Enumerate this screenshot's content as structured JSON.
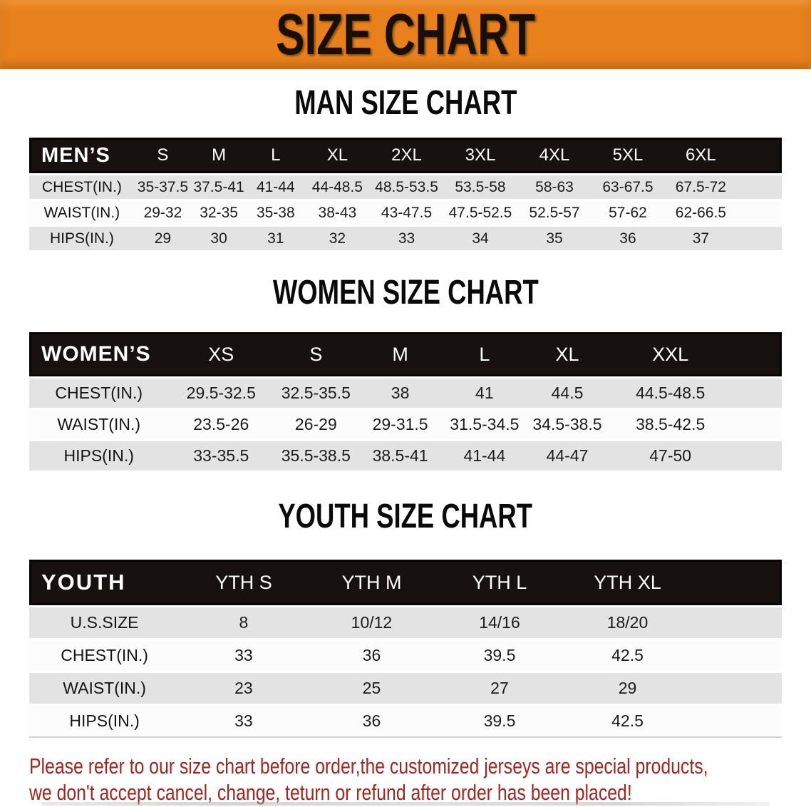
{
  "banner": {
    "title": "SIZE CHART"
  },
  "colors": {
    "banner_bg": "#E8811C",
    "banner_text": "#181006",
    "bar_bg": "#17120F",
    "bar_text": "#FFFFFF",
    "row_gray": "#E3E3E3",
    "row_white": "#FCFCFC",
    "disclaimer_text": "#A5241E"
  },
  "sections": [
    {
      "id": "men",
      "heading": "MAN SIZE CHART",
      "corner_label": "MEN’S",
      "columns": [
        "S",
        "M",
        "L",
        "XL",
        "2XL",
        "3XL",
        "4XL",
        "5XL",
        "6XL"
      ],
      "rows": [
        {
          "label": "CHEST(IN.)",
          "values": [
            "35-37.5",
            "37.5-41",
            "41-44",
            "44-48.5",
            "48.5-53.5",
            "53.5-58",
            "58-63",
            "63-67.5",
            "67.5-72"
          ]
        },
        {
          "label": "WAIST(IN.)",
          "values": [
            "29-32",
            "32-35",
            "35-38",
            "38-43",
            "43-47.5",
            "47.5-52.5",
            "52.5-57",
            "57-62",
            "62-66.5"
          ]
        },
        {
          "label": "HIPS(IN.)",
          "values": [
            "29",
            "30",
            "31",
            "32",
            "33",
            "34",
            "35",
            "36",
            "37"
          ]
        }
      ]
    },
    {
      "id": "women",
      "heading": "WOMEN SIZE CHART",
      "corner_label": "WOMEN’S",
      "columns": [
        "XS",
        "S",
        "M",
        "L",
        "XL",
        "XXL"
      ],
      "rows": [
        {
          "label": "CHEST(IN.)",
          "values": [
            "29.5-32.5",
            "32.5-35.5",
            "38",
            "41",
            "44.5",
            "44.5-48.5"
          ]
        },
        {
          "label": "WAIST(IN.)",
          "values": [
            "23.5-26",
            "26-29",
            "29-31.5",
            "31.5-34.5",
            "34.5-38.5",
            "38.5-42.5"
          ]
        },
        {
          "label": "HIPS(IN.)",
          "values": [
            "33-35.5",
            "35.5-38.5",
            "38.5-41",
            "41-44",
            "44-47",
            "47-50"
          ]
        }
      ]
    },
    {
      "id": "youth",
      "heading": "YOUTH SIZE CHART",
      "corner_label": "YOUTH",
      "columns": [
        "YTH S",
        "YTH M",
        "YTH L",
        "YTH XL"
      ],
      "rows": [
        {
          "label": "U.S.SIZE",
          "values": [
            "8",
            "10/12",
            "14/16",
            "18/20"
          ]
        },
        {
          "label": "CHEST(IN.)",
          "values": [
            "33",
            "36",
            "39.5",
            "42.5"
          ]
        },
        {
          "label": "WAIST(IN.)",
          "values": [
            "23",
            "25",
            "27",
            "29"
          ]
        },
        {
          "label": "HIPS(IN.)",
          "values": [
            "33",
            "36",
            "39.5",
            "42.5"
          ]
        }
      ]
    }
  ],
  "disclaimer": {
    "lines": [
      "Please refer to our size chart before order,the customized jerseys are special products,",
      "we don't accept cancel, change, teturn or refund after order has been placed!"
    ]
  }
}
